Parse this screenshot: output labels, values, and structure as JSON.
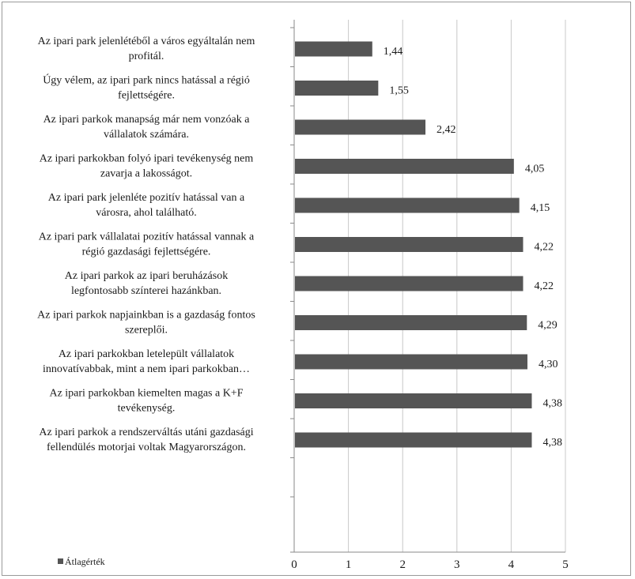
{
  "chart_data": {
    "type": "bar",
    "orientation": "horizontal",
    "categories": [
      [
        "Az ipari park jelenlétéből a város egyáltalán nem",
        "profitál."
      ],
      [
        "Úgy vélem, az ipari park nincs hatással a régió",
        "fejlettségére."
      ],
      [
        "Az ipari parkok manapság már nem vonzóak a",
        "vállalatok számára."
      ],
      [
        "Az ipari parkokban folyó ipari tevékenység nem",
        "zavarja a lakosságot."
      ],
      [
        "Az ipari park jelenléte pozitív hatással van a",
        "városra, ahol található."
      ],
      [
        "Az ipari park vállalatai pozitív hatással vannak a",
        "régió gazdasági fejlettségére."
      ],
      [
        "Az ipari parkok az ipari beruházások",
        "legfontosabb színterei hazánkban."
      ],
      [
        "Az ipari parkok napjainkban is a gazdaság fontos",
        "szereplői."
      ],
      [
        "Az ipari parkokban letelepült vállalatok",
        "innovatívabbak, mint a nem ipari parkokban…"
      ],
      [
        "Az ipari parkokban kiemelten magas a K+F",
        "tevékenység."
      ],
      [
        "Az ipari parkok a rendszerváltás utáni gazdasági",
        "fellendülés motorjai voltak Magyarországon."
      ]
    ],
    "series": [
      {
        "name": "Átlagérték",
        "values": [
          1.44,
          1.55,
          2.42,
          4.05,
          4.15,
          4.22,
          4.22,
          4.29,
          4.3,
          4.38,
          4.38
        ],
        "value_labels": [
          "1,44",
          "1,55",
          "2,42",
          "4,05",
          "4,15",
          "4,22",
          "4,22",
          "4,29",
          "4,30",
          "4,38",
          "4,38"
        ],
        "color": "#555555"
      }
    ],
    "xlim": [
      0,
      5
    ],
    "x_ticks": [
      "0",
      "1",
      "2",
      "3",
      "4",
      "5"
    ],
    "grid": "vertical",
    "legend": {
      "position": "bottom-left",
      "label": "Átlagérték"
    }
  }
}
